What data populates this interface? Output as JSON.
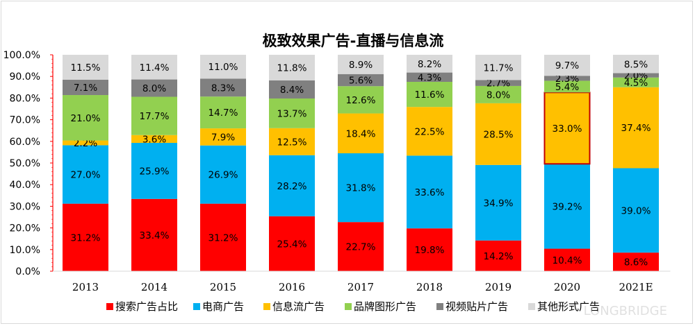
{
  "chart_data": {
    "type": "bar",
    "stacked": true,
    "title": "极致效果广告-直播与信息流",
    "categories": [
      "2013",
      "2014",
      "2015",
      "2016",
      "2017",
      "2018",
      "2019",
      "2020",
      "2021E"
    ],
    "ylim": [
      0,
      100
    ],
    "yticks": [
      "0.0%",
      "10.0%",
      "20.0%",
      "30.0%",
      "40.0%",
      "50.0%",
      "60.0%",
      "70.0%",
      "80.0%",
      "90.0%",
      "100.0%"
    ],
    "legend_position": "bottom",
    "highlight": {
      "series": "信息流广告",
      "category": "2020",
      "color": "#c00000"
    },
    "series": [
      {
        "name": "搜索广告占比",
        "color": "#ff0000",
        "values": [
          31.2,
          33.4,
          31.2,
          25.4,
          22.7,
          19.8,
          14.2,
          10.4,
          8.6
        ],
        "labels": [
          "31.2%",
          "33.4%",
          "31.2%",
          "25.4%",
          "22.7%",
          "19.8%",
          "14.2%",
          "10.4%",
          "8.6%"
        ]
      },
      {
        "name": "电商广告",
        "color": "#00b0f0",
        "values": [
          27.0,
          25.9,
          26.9,
          28.2,
          31.8,
          33.6,
          34.9,
          39.2,
          39.0
        ],
        "labels": [
          "27.0%",
          "25.9%",
          "26.9%",
          "28.2%",
          "31.8%",
          "33.6%",
          "34.9%",
          "39.2%",
          "39.0%"
        ]
      },
      {
        "name": "信息流广告",
        "color": "#ffc000",
        "values": [
          2.2,
          3.6,
          7.9,
          12.5,
          18.4,
          22.5,
          28.5,
          33.0,
          37.4
        ],
        "labels": [
          "2.2%",
          "3.6%",
          "7.9%",
          "12.5%",
          "18.4%",
          "22.5%",
          "28.5%",
          "33.0%",
          "37.4%"
        ]
      },
      {
        "name": "品牌图形广告",
        "color": "#92d050",
        "values": [
          21.0,
          17.7,
          14.7,
          13.7,
          12.6,
          11.6,
          8.0,
          5.4,
          4.5
        ],
        "labels": [
          "21.0%",
          "17.7%",
          "14.7%",
          "13.7%",
          "12.6%",
          "11.6%",
          "8.0%",
          "5.4%",
          "4.5%"
        ]
      },
      {
        "name": "视频贴片广告",
        "color": "#808080",
        "values": [
          7.1,
          8.0,
          8.3,
          8.4,
          5.6,
          4.3,
          2.7,
          2.3,
          2.0
        ],
        "labels": [
          "7.1%",
          "8.0%",
          "8.3%",
          "8.4%",
          "5.6%",
          "4.3%",
          "2.7%",
          "2.3%",
          "2.0%"
        ]
      },
      {
        "name": "其他形式广告",
        "color": "#d9d9d9",
        "values": [
          11.5,
          11.4,
          11.0,
          11.8,
          8.9,
          8.2,
          11.7,
          9.7,
          8.5
        ],
        "labels": [
          "11.5%",
          "11.4%",
          "11.0%",
          "11.8%",
          "8.9%",
          "8.2%",
          "11.7%",
          "9.7%",
          "8.5%"
        ]
      }
    ]
  },
  "watermark": "LONGBRIDGE"
}
